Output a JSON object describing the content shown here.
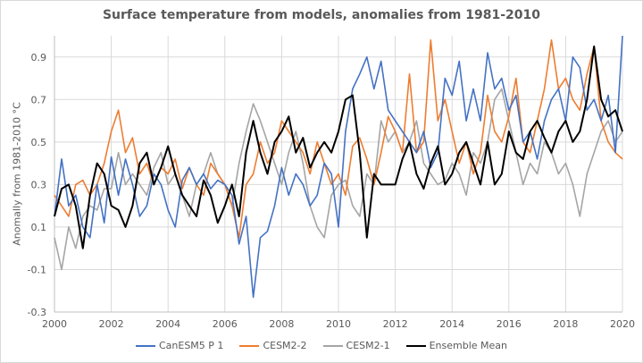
{
  "chart_data": {
    "type": "line",
    "title": "Surface temperature from models, anomalies from 1981-2010",
    "xlabel": "",
    "ylabel": "Anomally from 1981-2010 °C",
    "xlim": [
      2000,
      2020
    ],
    "ylim": [
      -0.3,
      1.0
    ],
    "x_ticks": [
      "2000",
      "2002",
      "2004",
      "2006",
      "2008",
      "2010",
      "2012",
      "2014",
      "2016",
      "2018",
      "2020"
    ],
    "y_ticks": [
      "0.9",
      "0.7",
      "0.5",
      "0.3",
      "0.1",
      "-0.1",
      "-0.3"
    ],
    "y_tick_values": [
      0.9,
      0.7,
      0.5,
      0.3,
      0.1,
      -0.1,
      -0.3
    ],
    "x_tick_values": [
      2000,
      2002,
      2004,
      2006,
      2008,
      2010,
      2012,
      2014,
      2016,
      2018,
      2020
    ],
    "grid": true,
    "legend_position": "bottom",
    "x": [
      2000.0,
      2000.25,
      2000.5,
      2000.75,
      2001.0,
      2001.25,
      2001.5,
      2001.75,
      2002.0,
      2002.25,
      2002.5,
      2002.75,
      2003.0,
      2003.25,
      2003.5,
      2003.75,
      2004.0,
      2004.25,
      2004.5,
      2004.75,
      2005.0,
      2005.25,
      2005.5,
      2005.75,
      2006.0,
      2006.25,
      2006.5,
      2006.75,
      2007.0,
      2007.25,
      2007.5,
      2007.75,
      2008.0,
      2008.25,
      2008.5,
      2008.75,
      2009.0,
      2009.25,
      2009.5,
      2009.75,
      2010.0,
      2010.25,
      2010.5,
      2010.75,
      2011.0,
      2011.25,
      2011.5,
      2011.75,
      2012.0,
      2012.25,
      2012.5,
      2012.75,
      2013.0,
      2013.25,
      2013.5,
      2013.75,
      2014.0,
      2014.25,
      2014.5,
      2014.75,
      2015.0,
      2015.25,
      2015.5,
      2015.75,
      2016.0,
      2016.25,
      2016.5,
      2016.75,
      2017.0,
      2017.25,
      2017.5,
      2017.75,
      2018.0,
      2018.25,
      2018.5,
      2018.75,
      2019.0,
      2019.25,
      2019.5,
      2019.75,
      2020.0
    ],
    "series": [
      {
        "name": "CanESM5 P 1",
        "color": "#4472c4",
        "values": [
          0.15,
          0.42,
          0.2,
          0.25,
          0.1,
          0.05,
          0.3,
          0.12,
          0.43,
          0.25,
          0.42,
          0.3,
          0.15,
          0.2,
          0.35,
          0.3,
          0.18,
          0.1,
          0.32,
          0.38,
          0.3,
          0.35,
          0.28,
          0.32,
          0.3,
          0.25,
          0.02,
          0.15,
          -0.23,
          0.05,
          0.08,
          0.2,
          0.38,
          0.25,
          0.35,
          0.3,
          0.2,
          0.25,
          0.4,
          0.35,
          0.1,
          0.55,
          0.75,
          0.82,
          0.9,
          0.75,
          0.88,
          0.65,
          0.6,
          0.55,
          0.5,
          0.45,
          0.55,
          0.38,
          0.45,
          0.8,
          0.72,
          0.88,
          0.6,
          0.75,
          0.6,
          0.92,
          0.75,
          0.8,
          0.65,
          0.72,
          0.5,
          0.55,
          0.42,
          0.6,
          0.7,
          0.75,
          0.6,
          0.9,
          0.85,
          0.65,
          0.7,
          0.6,
          0.72,
          0.45,
          1.0
        ]
      },
      {
        "name": "CESM2-2",
        "color": "#ed7d31",
        "values": [
          0.25,
          0.2,
          0.15,
          0.3,
          0.32,
          0.25,
          0.3,
          0.4,
          0.55,
          0.65,
          0.45,
          0.52,
          0.35,
          0.4,
          0.3,
          0.38,
          0.35,
          0.42,
          0.28,
          0.38,
          0.3,
          0.25,
          0.4,
          0.35,
          0.3,
          0.2,
          0.05,
          0.3,
          0.35,
          0.5,
          0.4,
          0.45,
          0.6,
          0.55,
          0.5,
          0.45,
          0.35,
          0.5,
          0.4,
          0.3,
          0.35,
          0.25,
          0.48,
          0.52,
          0.42,
          0.3,
          0.45,
          0.62,
          0.55,
          0.45,
          0.82,
          0.45,
          0.5,
          0.98,
          0.6,
          0.7,
          0.55,
          0.4,
          0.5,
          0.35,
          0.45,
          0.72,
          0.55,
          0.5,
          0.62,
          0.8,
          0.5,
          0.45,
          0.6,
          0.75,
          0.98,
          0.75,
          0.8,
          0.7,
          0.65,
          0.82,
          0.95,
          0.6,
          0.5,
          0.45,
          0.42
        ]
      },
      {
        "name": "CESM2-1",
        "color": "#a5a5a5",
        "values": [
          0.05,
          -0.1,
          0.1,
          0.0,
          0.15,
          0.2,
          0.18,
          0.28,
          0.28,
          0.45,
          0.3,
          0.35,
          0.3,
          0.25,
          0.38,
          0.45,
          0.3,
          0.35,
          0.25,
          0.15,
          0.3,
          0.35,
          0.45,
          0.35,
          0.3,
          0.2,
          0.4,
          0.55,
          0.68,
          0.6,
          0.5,
          0.4,
          0.3,
          0.45,
          0.55,
          0.4,
          0.2,
          0.1,
          0.05,
          0.25,
          0.3,
          0.32,
          0.2,
          0.15,
          0.35,
          0.3,
          0.6,
          0.5,
          0.55,
          0.45,
          0.5,
          0.6,
          0.4,
          0.35,
          0.3,
          0.32,
          0.4,
          0.35,
          0.25,
          0.45,
          0.4,
          0.5,
          0.7,
          0.75,
          0.6,
          0.45,
          0.3,
          0.4,
          0.35,
          0.5,
          0.45,
          0.35,
          0.4,
          0.3,
          0.15,
          0.35,
          0.45,
          0.55,
          0.6,
          0.5,
          0.55
        ]
      },
      {
        "name": "Ensemble Mean",
        "color": "#000000",
        "values": [
          0.15,
          0.28,
          0.3,
          0.2,
          0.0,
          0.25,
          0.4,
          0.35,
          0.2,
          0.18,
          0.1,
          0.2,
          0.4,
          0.45,
          0.3,
          0.38,
          0.48,
          0.35,
          0.25,
          0.2,
          0.15,
          0.32,
          0.25,
          0.12,
          0.2,
          0.3,
          0.15,
          0.45,
          0.6,
          0.45,
          0.35,
          0.5,
          0.55,
          0.62,
          0.45,
          0.52,
          0.38,
          0.45,
          0.5,
          0.45,
          0.55,
          0.7,
          0.72,
          0.45,
          0.05,
          0.35,
          0.3,
          0.3,
          0.3,
          0.42,
          0.5,
          0.35,
          0.28,
          0.4,
          0.48,
          0.3,
          0.35,
          0.45,
          0.5,
          0.4,
          0.3,
          0.5,
          0.3,
          0.35,
          0.55,
          0.45,
          0.42,
          0.55,
          0.6,
          0.52,
          0.45,
          0.55,
          0.6,
          0.5,
          0.55,
          0.7,
          0.95,
          0.7,
          0.62,
          0.65,
          0.55
        ]
      }
    ]
  }
}
